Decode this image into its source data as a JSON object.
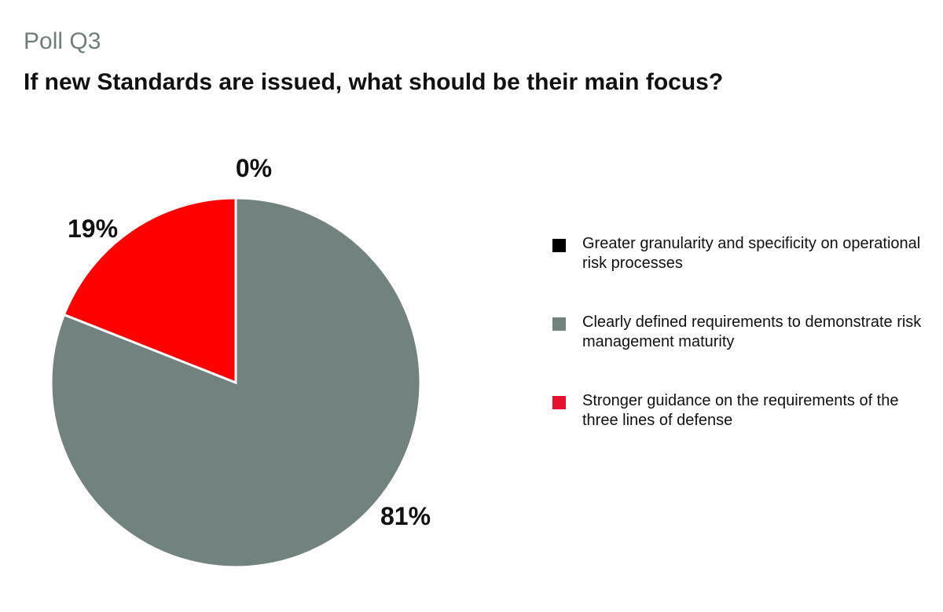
{
  "chart_data": {
    "type": "pie",
    "subtitle": "Poll Q3",
    "title": "If new Standards are issued, what should be their main focus?",
    "slices": [
      {
        "name": "Greater granularity and specificity on operational risk processes",
        "value": 0,
        "label": "0%",
        "color": "#000000"
      },
      {
        "name": "Clearly defined requirements to demonstrate risk management maturity",
        "value": 81,
        "label": "81%",
        "color": "#72827f"
      },
      {
        "name": "Stronger guidance on the requirements of the three lines of defense",
        "value": 19,
        "label": "19%",
        "color": "#fe0000"
      }
    ],
    "legend_position": "right"
  },
  "legend_colors": [
    "#000000",
    "#72827f",
    "#e8112d"
  ]
}
